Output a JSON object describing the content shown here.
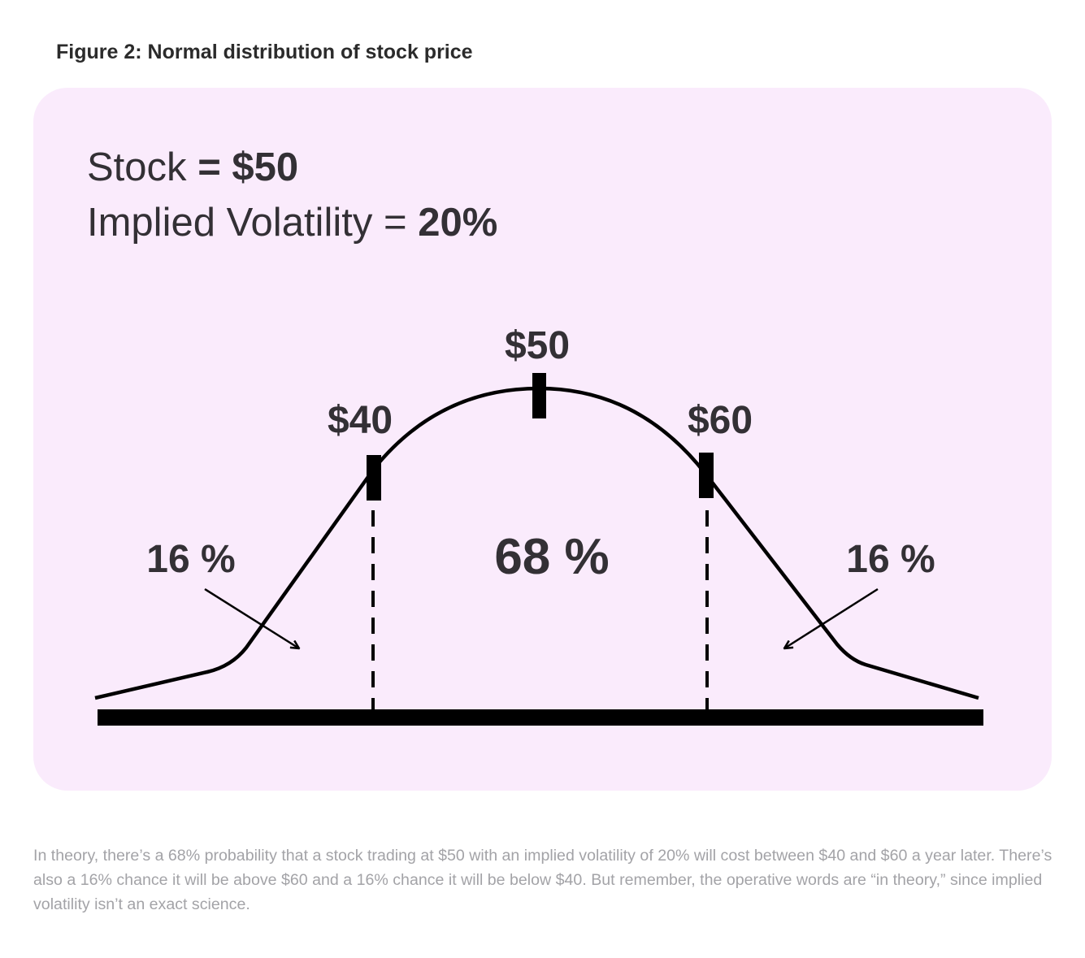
{
  "figure": {
    "title": "Figure 2: Normal distribution of stock price"
  },
  "info": {
    "stock_label": "Stock",
    "stock_value": "= $50",
    "iv_label": "Implied Volatility =",
    "iv_value": "20%"
  },
  "diagram": {
    "price_labels": {
      "minus_one_sd": "$40",
      "mean": "$50",
      "plus_one_sd": "$60"
    },
    "region_labels": {
      "left_tail": "16 %",
      "middle": "68 %",
      "right_tail": "16 %"
    },
    "colors": {
      "panel_background": "#faebfc",
      "stroke": "#000000",
      "text": "#333035",
      "caption_text": "#a3a3a7"
    }
  },
  "caption": {
    "text": "In theory, there’s a 68% probability that a stock trading at $50 with an implied volatility of 20% will cost between $40 and $60 a year later. There’s also a 16% chance it will be above $60 and a 16% chance it will be below $40. But remember, the operative words are “in theory,” since implied volatility isn’t an exact science."
  }
}
